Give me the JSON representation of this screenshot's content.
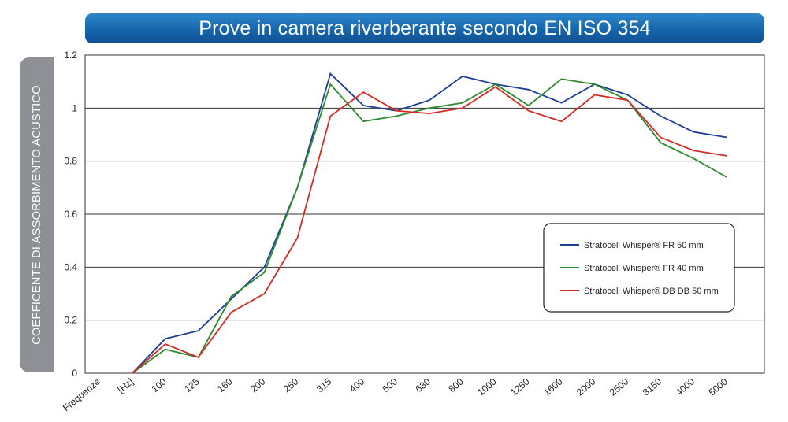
{
  "title": "Prove in camera riverberante secondo EN ISO 354",
  "colors": {
    "title_bar": "#1766ad",
    "ylabel_tab": "#8e9095",
    "grid": "#333333"
  },
  "chart_data": {
    "type": "line",
    "title": "Prove in camera riverberante secondo EN ISO 354",
    "ylabel": "COEFFICENTE DI ASSORBIMENTO ACUSTICO",
    "x_prefix_labels": [
      "Frequenze",
      "[Hz]"
    ],
    "categories": [
      "100",
      "125",
      "160",
      "200",
      "250",
      "315",
      "400",
      "500",
      "630",
      "800",
      "1000",
      "1250",
      "1600",
      "2000",
      "2500",
      "3150",
      "4000",
      "5000"
    ],
    "ylim": [
      0,
      1.2
    ],
    "yticks": [
      0,
      0.2,
      0.4,
      0.6,
      0.8,
      1,
      1.2
    ],
    "ytick_labels": [
      "0",
      "0.2",
      "0.4",
      "0.6",
      "0.8",
      "1",
      "1.2"
    ],
    "grid": true,
    "legend_position": "right",
    "series": [
      {
        "name": "Stratocell Whisper® FR 50 mm",
        "color": "#1f3f94",
        "start": 0.0,
        "values": [
          0.13,
          0.16,
          0.28,
          0.4,
          0.7,
          1.13,
          1.01,
          0.99,
          1.03,
          1.12,
          1.09,
          1.07,
          1.02,
          1.09,
          1.05,
          0.97,
          0.91,
          0.89
        ]
      },
      {
        "name": "Stratocell Whisper® FR 40 mm",
        "color": "#2e8b2e",
        "start": 0.0,
        "values": [
          0.09,
          0.06,
          0.29,
          0.38,
          0.7,
          1.09,
          0.95,
          0.97,
          1.0,
          1.02,
          1.09,
          1.01,
          1.11,
          1.09,
          1.03,
          0.87,
          0.81,
          0.74
        ]
      },
      {
        "name": "Stratocell Whisper® DB DB 50 mm",
        "color": "#d42b23",
        "start": 0.0,
        "values": [
          0.11,
          0.06,
          0.23,
          0.3,
          0.51,
          0.97,
          1.06,
          0.99,
          0.98,
          1.0,
          1.08,
          0.99,
          0.95,
          1.05,
          1.03,
          0.89,
          0.84,
          0.82
        ]
      }
    ]
  }
}
